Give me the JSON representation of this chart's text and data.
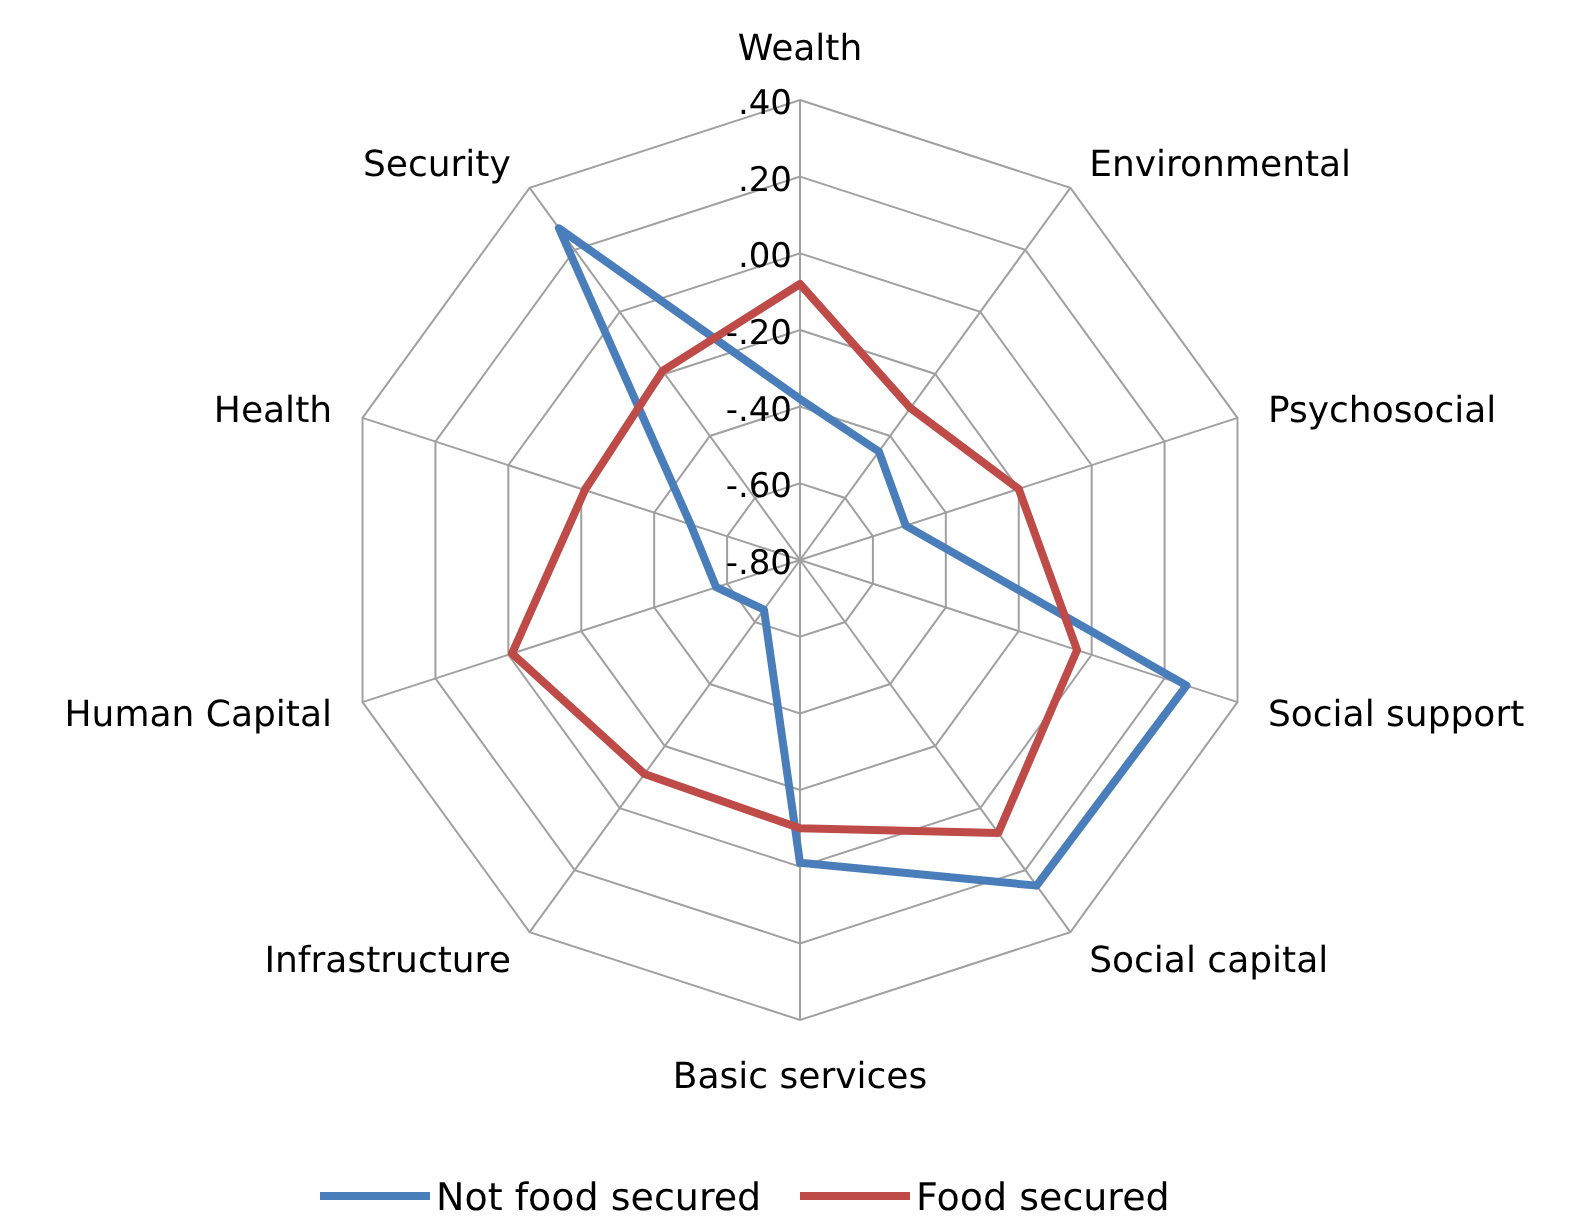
{
  "chart_data": {
    "type": "radar",
    "categories": [
      "Wealth",
      "Environmental",
      "Psychosocial",
      "Social support",
      "Social capital",
      "Basic services",
      "Infrastructure",
      "Human Capital",
      "Health",
      "Security"
    ],
    "series": [
      {
        "name": "Not food secured",
        "color": "#4a7ebb",
        "values": [
          -0.38,
          -0.45,
          -0.51,
          0.26,
          0.25,
          -0.01,
          -0.64,
          -0.57,
          -0.5,
          0.27
        ]
      },
      {
        "name": "Food secured",
        "color": "#be4b48",
        "values": [
          -0.08,
          -0.31,
          -0.2,
          -0.04,
          0.08,
          -0.1,
          -0.11,
          -0.01,
          -0.21,
          -0.19
        ]
      }
    ],
    "ylim": [
      -0.8,
      0.4
    ],
    "yticks": [
      {
        "value": -0.8,
        "label": "-.80"
      },
      {
        "value": -0.6,
        "label": "-.60"
      },
      {
        "value": -0.4,
        "label": "-.40"
      },
      {
        "value": -0.2,
        "label": "-.20"
      },
      {
        "value": 0,
        "label": ".00"
      },
      {
        "value": 0.2,
        "label": ".20"
      },
      {
        "value": 0.4,
        "label": ".40"
      }
    ],
    "grid": true,
    "legend": "bottom"
  }
}
